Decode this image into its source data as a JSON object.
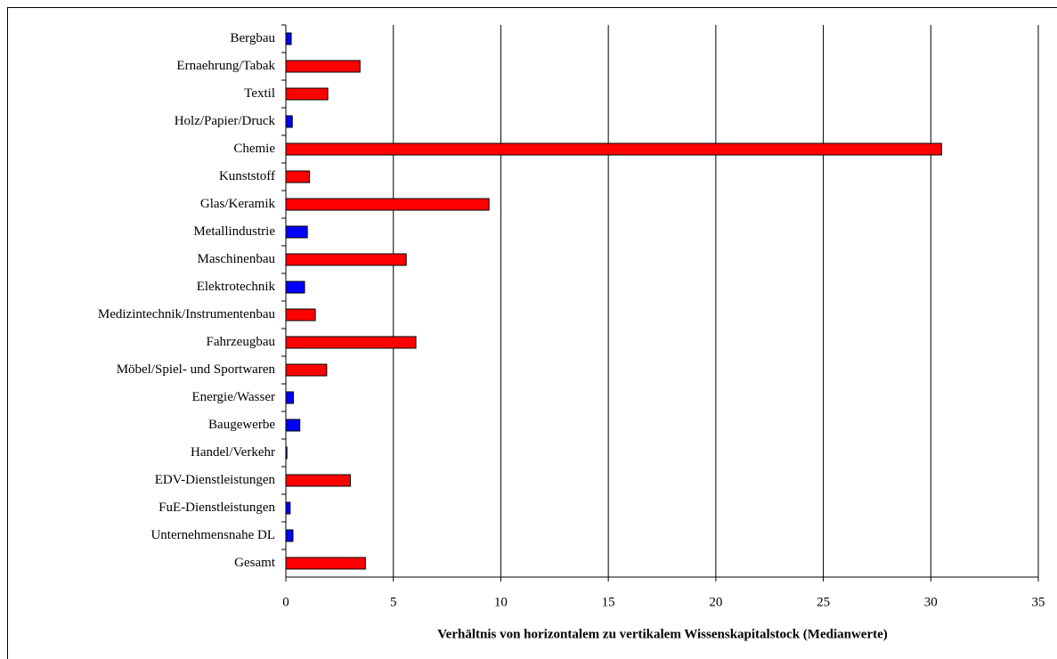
{
  "chart_data": {
    "type": "hbar",
    "xlabel": "Verhältnis  von horizontalem zu vertikalem Wissenskapitalstock (Medianwerte)",
    "categories": [
      "Bergbau",
      "Ernaehrung/Tabak",
      "Textil",
      "Holz/Papier/Druck",
      "Chemie",
      "Kunststoff",
      "Glas/Keramik",
      "Metallindustrie",
      "Maschinenbau",
      "Elektrotechnik",
      "Medizintechnik/Instrumentenbau",
      "Fahrzeugbau",
      "Möbel/Spiel- und Sportwaren",
      "Energie/Wasser",
      "Baugewerbe",
      "Handel/Verkehr",
      "EDV-Dienstleistungen",
      "FuE-Dienstleistungen",
      "Unternehmensnahe DL",
      "Gesamt"
    ],
    "values": [
      0.25,
      3.45,
      1.95,
      0.3,
      30.5,
      1.1,
      9.45,
      1.0,
      5.6,
      0.87,
      1.37,
      6.05,
      1.9,
      0.35,
      0.65,
      0.05,
      3.0,
      0.2,
      0.33,
      3.7
    ],
    "colors": [
      "#0000ff",
      "#ff0000",
      "#ff0000",
      "#0000ff",
      "#ff0000",
      "#ff0000",
      "#ff0000",
      "#0000ff",
      "#ff0000",
      "#0000ff",
      "#ff0000",
      "#ff0000",
      "#ff0000",
      "#0000ff",
      "#0000ff",
      "#0000ff",
      "#ff0000",
      "#0000ff",
      "#0000ff",
      "#ff0000"
    ],
    "xlim": [
      0,
      35
    ],
    "xticks": [
      0,
      5,
      10,
      15,
      20,
      25,
      30,
      35
    ],
    "grid": true
  }
}
